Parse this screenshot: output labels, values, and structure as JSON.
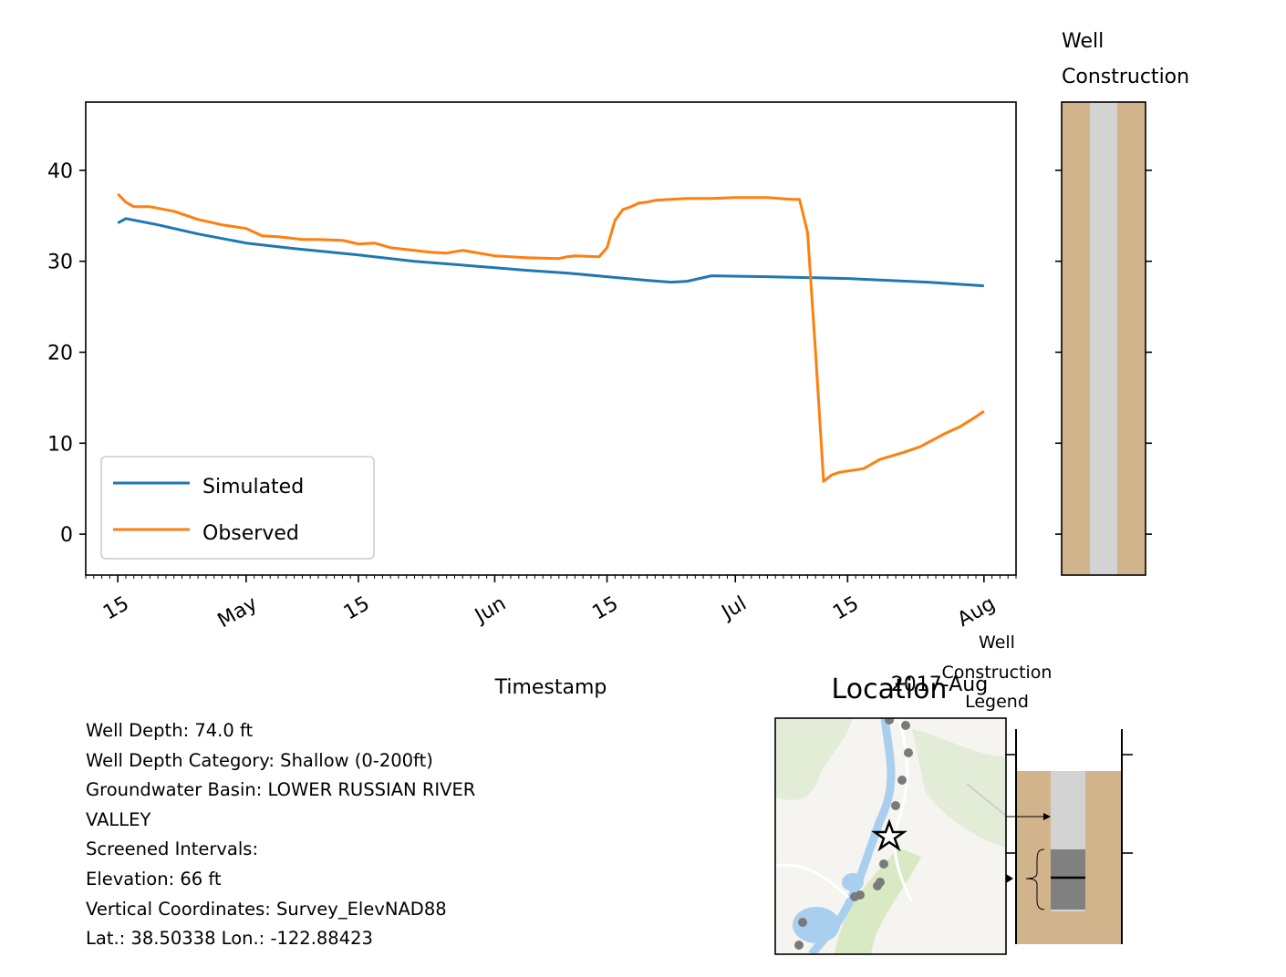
{
  "chart_data": {
    "type": "line",
    "xlabel": "Timestamp",
    "x_axis_type": "date",
    "x_ticks": [
      {
        "date": "2017-04-15",
        "label": "15"
      },
      {
        "date": "2017-05-01",
        "label": "May"
      },
      {
        "date": "2017-05-15",
        "label": "15"
      },
      {
        "date": "2017-06-01",
        "label": "Jun"
      },
      {
        "date": "2017-06-15",
        "label": "15"
      },
      {
        "date": "2017-07-01",
        "label": "Jul"
      },
      {
        "date": "2017-07-15",
        "label": "15"
      },
      {
        "date": "2017-08-01",
        "label": "Aug"
      }
    ],
    "x_offset_label": "2017-Aug",
    "ylim": [
      -4.5,
      47.5
    ],
    "yticks": [
      0,
      10,
      20,
      30,
      40
    ],
    "grid": false,
    "legend_position": "lower-left",
    "series": [
      {
        "name": "Simulated",
        "color": "#1f77b4",
        "x": [
          "2017-04-15",
          "2017-04-16",
          "2017-04-20",
          "2017-04-25",
          "2017-05-01",
          "2017-05-07",
          "2017-05-15",
          "2017-05-22",
          "2017-06-01",
          "2017-06-05",
          "2017-06-10",
          "2017-06-15",
          "2017-06-20",
          "2017-06-23",
          "2017-06-25",
          "2017-06-28",
          "2017-07-05",
          "2017-07-15",
          "2017-07-25",
          "2017-08-01"
        ],
        "y": [
          34.2,
          34.7,
          34.0,
          33.0,
          32.0,
          31.4,
          30.7,
          30.0,
          29.3,
          29.0,
          28.7,
          28.3,
          27.9,
          27.7,
          27.8,
          28.4,
          28.3,
          28.1,
          27.7,
          27.3
        ]
      },
      {
        "name": "Observed",
        "color": "#ff7f0e",
        "x": [
          "2017-04-15",
          "2017-04-16",
          "2017-04-17",
          "2017-04-19",
          "2017-04-22",
          "2017-04-24",
          "2017-04-25",
          "2017-04-27",
          "2017-04-28",
          "2017-05-01",
          "2017-05-03",
          "2017-05-05",
          "2017-05-08",
          "2017-05-10",
          "2017-05-13",
          "2017-05-15",
          "2017-05-17",
          "2017-05-19",
          "2017-05-21",
          "2017-05-24",
          "2017-05-26",
          "2017-05-28",
          "2017-06-01",
          "2017-06-03",
          "2017-06-05",
          "2017-06-09",
          "2017-06-10",
          "2017-06-11",
          "2017-06-14",
          "2017-06-15",
          "2017-06-16",
          "2017-06-17",
          "2017-06-18",
          "2017-06-19",
          "2017-06-20",
          "2017-06-21",
          "2017-06-23",
          "2017-06-25",
          "2017-06-28",
          "2017-07-01",
          "2017-07-05",
          "2017-07-08",
          "2017-07-09",
          "2017-07-10",
          "2017-07-11",
          "2017-07-12",
          "2017-07-13",
          "2017-07-14",
          "2017-07-17",
          "2017-07-19",
          "2017-07-22",
          "2017-07-24",
          "2017-07-27",
          "2017-07-29",
          "2017-07-31",
          "2017-08-01"
        ],
        "y": [
          37.4,
          36.5,
          36.0,
          36.0,
          35.5,
          34.9,
          34.6,
          34.2,
          34.0,
          33.6,
          32.8,
          32.7,
          32.4,
          32.4,
          32.3,
          31.9,
          32.0,
          31.5,
          31.3,
          31.0,
          30.9,
          31.2,
          30.6,
          30.5,
          30.4,
          30.3,
          30.5,
          30.6,
          30.5,
          31.5,
          34.5,
          35.7,
          36.0,
          36.4,
          36.5,
          36.7,
          36.8,
          36.9,
          36.9,
          37.0,
          37.0,
          36.8,
          36.8,
          33.2,
          20.0,
          5.8,
          6.5,
          6.8,
          7.2,
          8.2,
          9.0,
          9.6,
          11.0,
          11.8,
          12.9,
          13.5
        ]
      }
    ]
  },
  "well_panel": {
    "title_line1": "Well",
    "title_line2": "Construction",
    "outer_color": "#d2b48c",
    "inner_color": "#d3d3d3"
  },
  "location_panel": {
    "title": "Location",
    "marker": "star-icon"
  },
  "legend_panel": {
    "title_line1": "Well",
    "title_line2": "Construction",
    "title_line3": "Legend",
    "screen_color": "#808080"
  },
  "info": {
    "well_depth": "Well Depth: 74.0 ft",
    "depth_category": "Well Depth Category: Shallow (0-200ft)",
    "basin_line1": "Groundwater Basin: LOWER RUSSIAN RIVER",
    "basin_line2": "VALLEY",
    "screened": "Screened Intervals:",
    "elevation": "Elevation: 66 ft",
    "vertical": "Vertical Coordinates: Survey_ElevNAD88",
    "latlon": "Lat.: 38.50338 Lon.: -122.88423"
  }
}
